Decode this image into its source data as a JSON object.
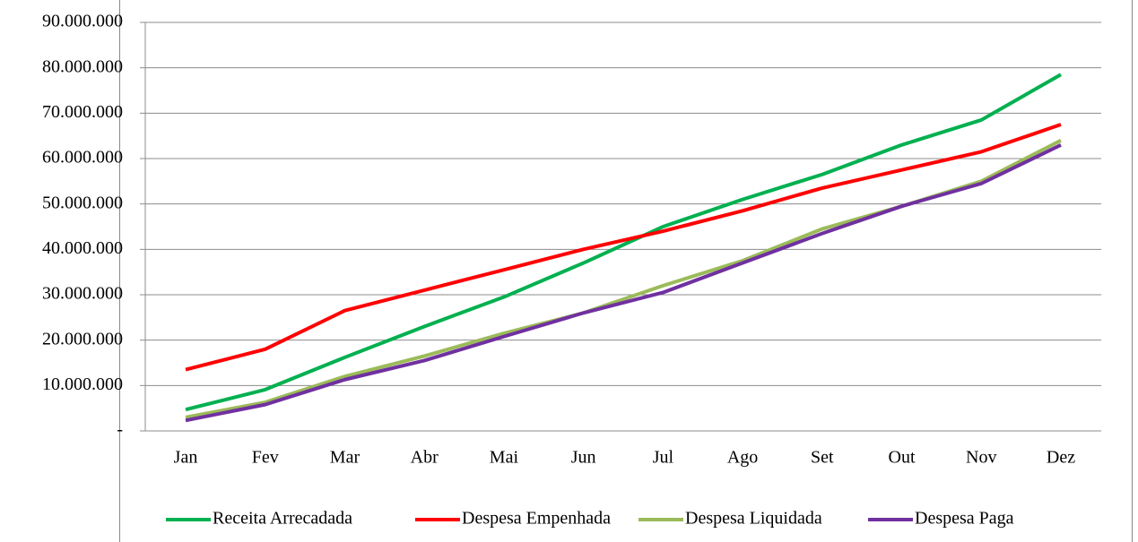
{
  "chart_data": {
    "type": "line",
    "categories": [
      "Jan",
      "Fev",
      "Mar",
      "Abr",
      "Mai",
      "Jun",
      "Jul",
      "Ago",
      "Set",
      "Out",
      "Nov",
      "Dez"
    ],
    "series": [
      {
        "name": "Receita Arrecadada",
        "color": "#00b050",
        "values": [
          4700000,
          9100000,
          16200000,
          23000000,
          29500000,
          37000000,
          45000000,
          51000000,
          56500000,
          63000000,
          68500000,
          78500000
        ]
      },
      {
        "name": "Despesa Empenhada",
        "color": "#ff0000",
        "values": [
          13500000,
          18000000,
          26500000,
          31000000,
          35500000,
          40000000,
          44000000,
          48500000,
          53500000,
          57500000,
          61500000,
          67500000
        ]
      },
      {
        "name": "Despesa Liquidada",
        "color": "#9bbb59",
        "values": [
          3000000,
          6300000,
          12000000,
          16500000,
          21500000,
          26000000,
          32000000,
          37500000,
          44500000,
          49500000,
          55000000,
          64000000
        ]
      },
      {
        "name": "Despesa Paga",
        "color": "#7030a0",
        "values": [
          2300000,
          5800000,
          11300000,
          15500000,
          20800000,
          26000000,
          30500000,
          37000000,
          43500000,
          49500000,
          54500000,
          63000000
        ]
      }
    ],
    "ylim": [
      0,
      90000000
    ],
    "yticks": [
      {
        "value": 0,
        "label": "-"
      },
      {
        "value": 10000000,
        "label": "10.000.000"
      },
      {
        "value": 20000000,
        "label": "20.000.000"
      },
      {
        "value": 30000000,
        "label": "30.000.000"
      },
      {
        "value": 40000000,
        "label": "40.000.000"
      },
      {
        "value": 50000000,
        "label": "50.000.000"
      },
      {
        "value": 60000000,
        "label": "60.000.000"
      },
      {
        "value": 70000000,
        "label": "70.000.000"
      },
      {
        "value": 80000000,
        "label": "80.000.000"
      },
      {
        "value": 90000000,
        "label": "90.000.000"
      }
    ],
    "grid": true,
    "legend": "bottom"
  }
}
